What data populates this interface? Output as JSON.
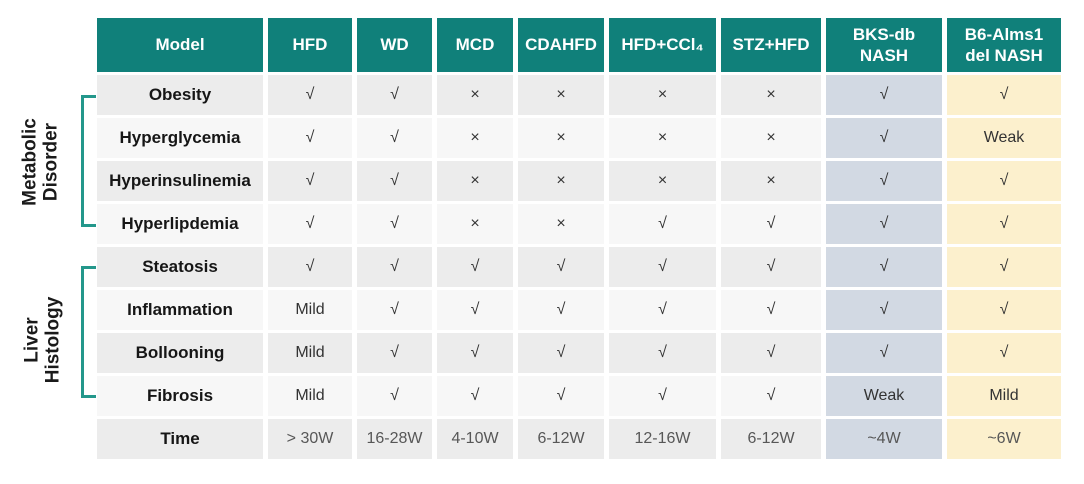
{
  "colors": {
    "header_bg": "#10807A",
    "header_text": "#FFFFFF",
    "bracket": "#23978B",
    "row_odd": "#ECECEC",
    "row_even": "#F7F7F7",
    "col_bks_db": "#D2D9E3",
    "col_b6_alms1": "#FCF0CD"
  },
  "side_groups": {
    "metabolic": {
      "label": "Metabolic\nDisorder"
    },
    "liver": {
      "label": "Liver\nHistology"
    }
  },
  "table": {
    "header": [
      "Model",
      "HFD",
      "WD",
      "MCD",
      "CDAHFD",
      "HFD+CCl₄",
      "STZ+HFD",
      "BKS-db\nNASH",
      "B6-Alms1\ndel NASH"
    ],
    "rows": [
      {
        "label": "Obesity",
        "values": [
          "√",
          "√",
          "×",
          "×",
          "×",
          "×",
          "√",
          "√"
        ]
      },
      {
        "label": "Hyperglycemia",
        "values": [
          "√",
          "√",
          "×",
          "×",
          "×",
          "×",
          "√",
          "Weak"
        ]
      },
      {
        "label": "Hyperinsulinemia",
        "values": [
          "√",
          "√",
          "×",
          "×",
          "×",
          "×",
          "√",
          "√"
        ]
      },
      {
        "label": "Hyperlipdemia",
        "values": [
          "√",
          "√",
          "×",
          "×",
          "√",
          "√",
          "√",
          "√"
        ]
      },
      {
        "label": "Steatosis",
        "values": [
          "√",
          "√",
          "√",
          "√",
          "√",
          "√",
          "√",
          "√"
        ]
      },
      {
        "label": "Inflammation",
        "values": [
          "Mild",
          "√",
          "√",
          "√",
          "√",
          "√",
          "√",
          "√"
        ]
      },
      {
        "label": "Bollooning",
        "values": [
          "Mild",
          "√",
          "√",
          "√",
          "√",
          "√",
          "√",
          "√"
        ]
      },
      {
        "label": "Fibrosis",
        "values": [
          "Mild",
          "√",
          "√",
          "√",
          "√",
          "√",
          "Weak",
          "Mild"
        ]
      },
      {
        "label": "Time",
        "values": [
          "> 30W",
          "16-28W",
          "4-10W",
          "6-12W",
          "12-16W",
          "6-12W",
          "~4W",
          "~6W"
        ]
      }
    ]
  }
}
